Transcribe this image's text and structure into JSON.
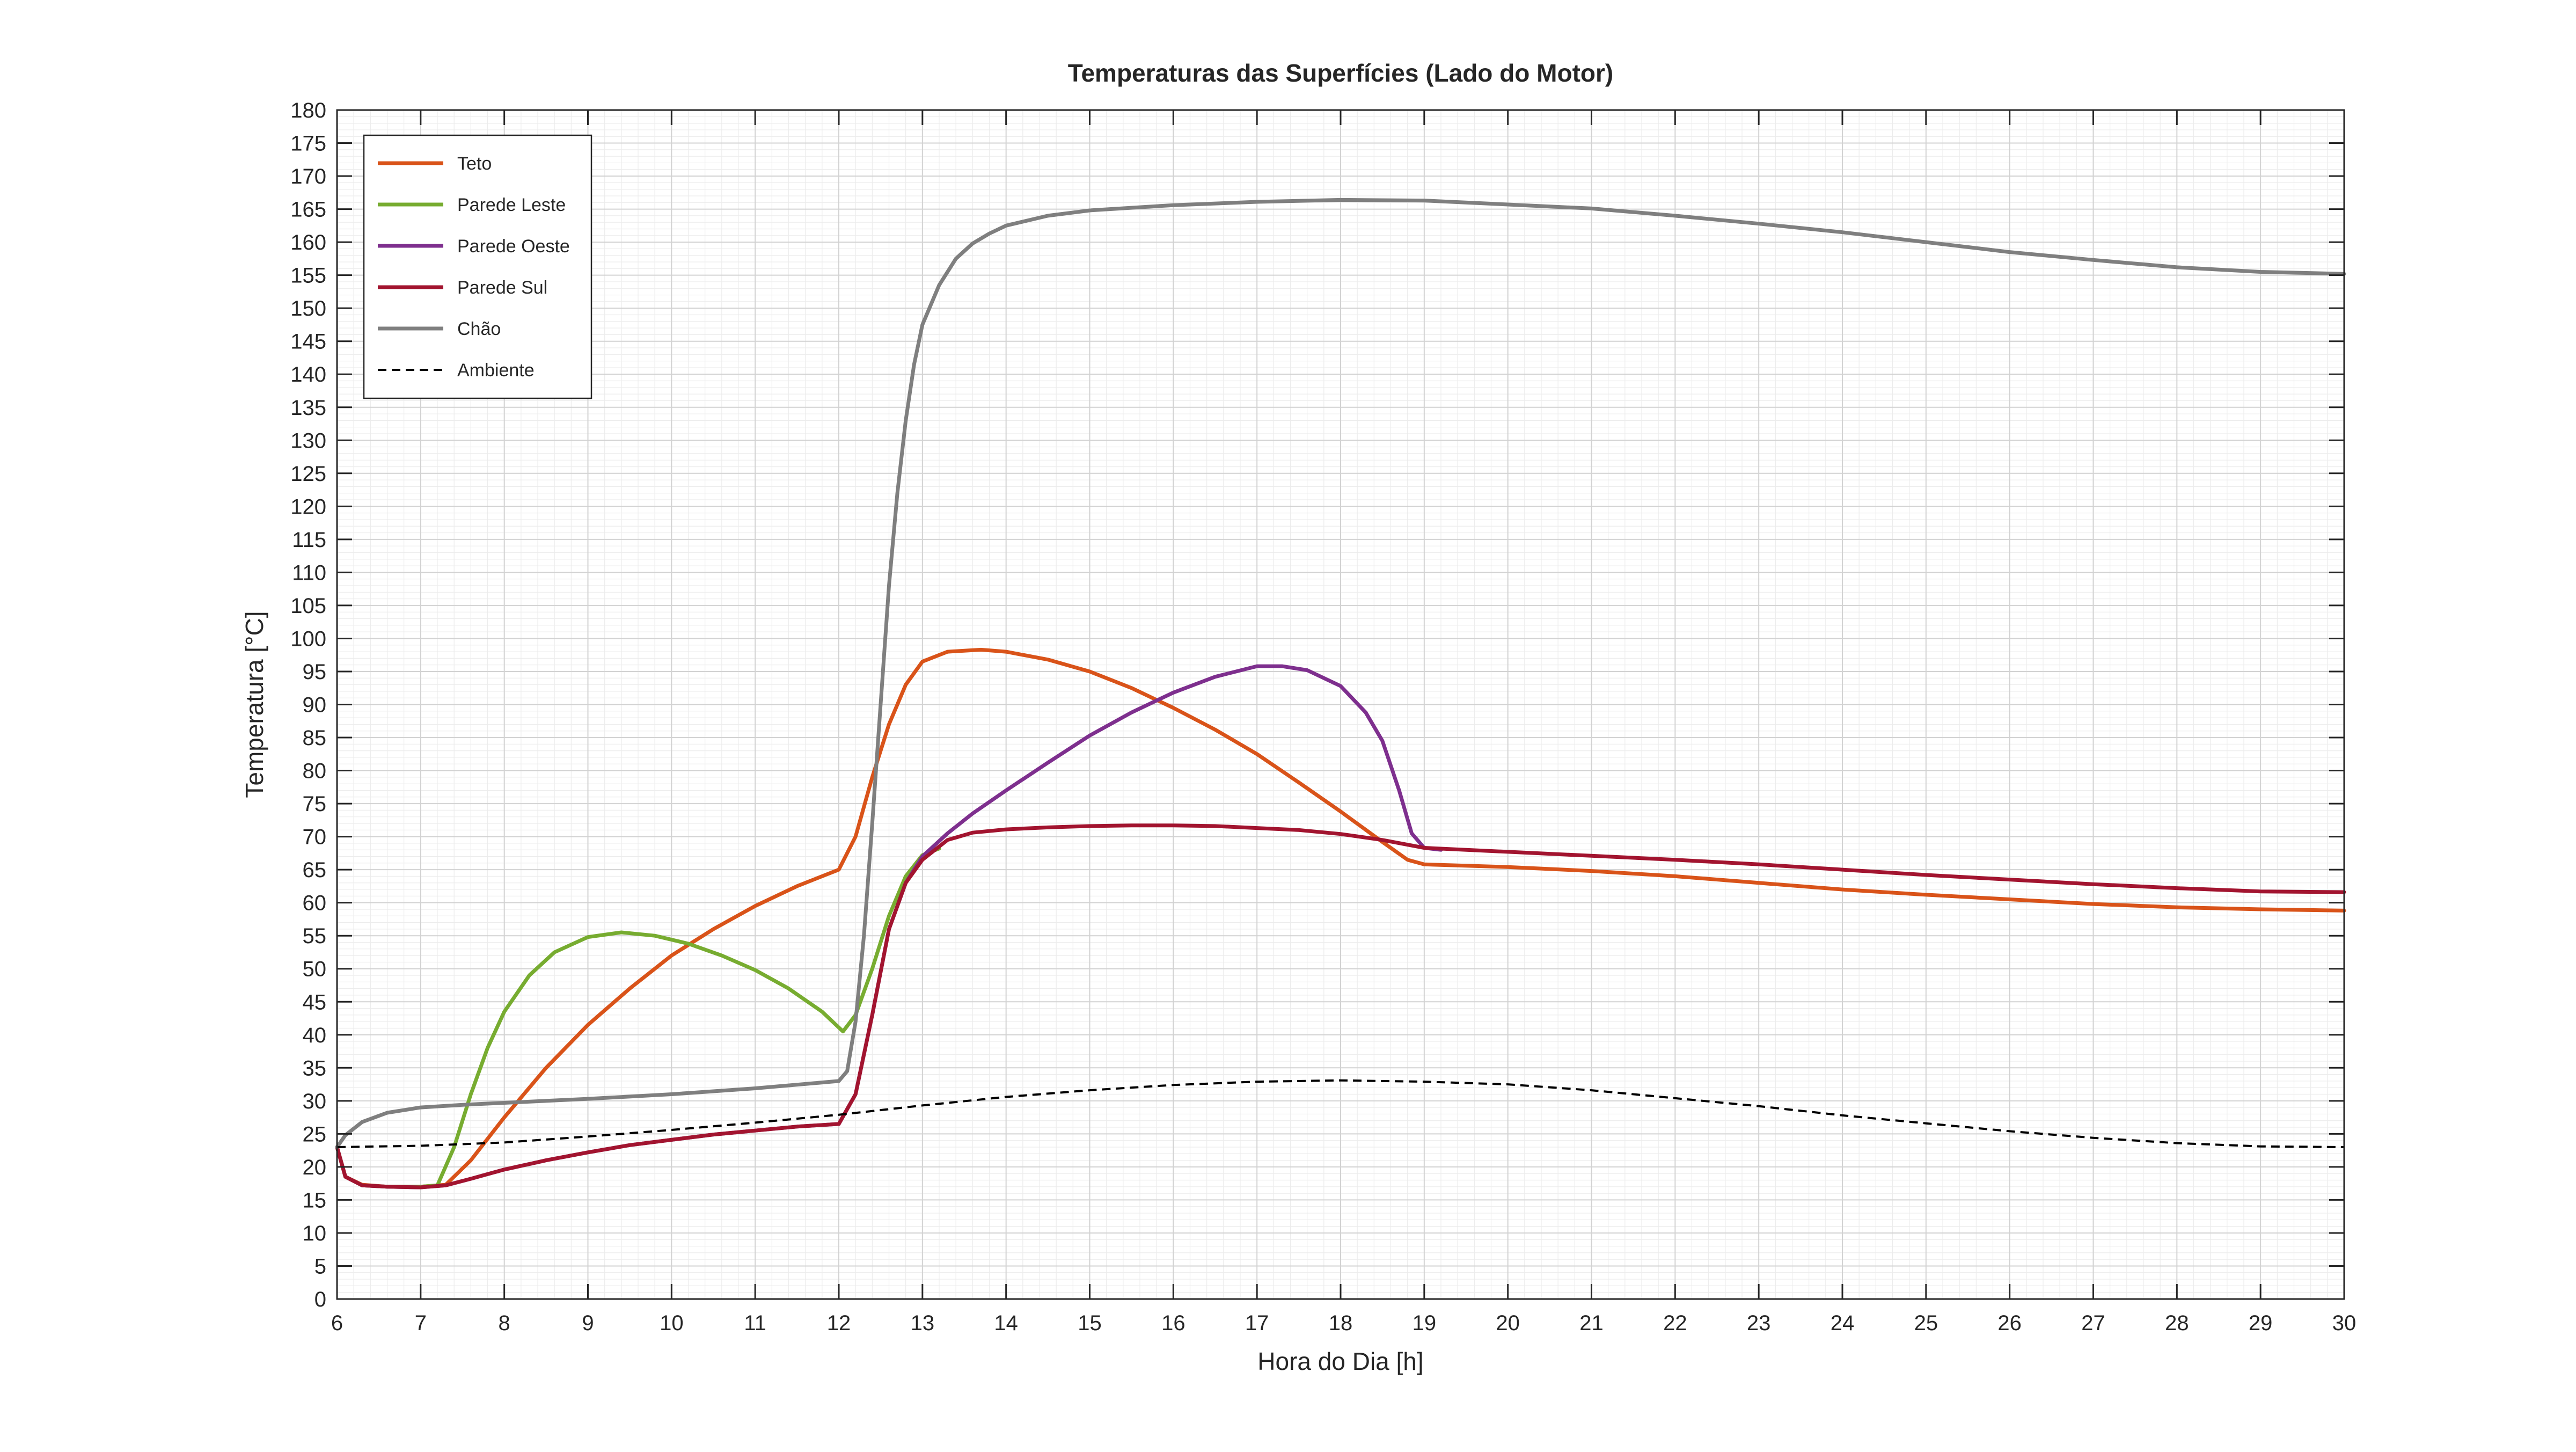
{
  "chart_data": {
    "type": "line",
    "title": "Temperaturas das Superfícies (Lado do Motor)",
    "xlabel": "Hora do Dia [h]",
    "ylabel": "Temperatura [°C]",
    "xlim": [
      6,
      30
    ],
    "ylim": [
      0,
      180
    ],
    "xticks": [
      6,
      7,
      8,
      9,
      10,
      11,
      12,
      13,
      14,
      15,
      16,
      17,
      18,
      19,
      20,
      21,
      22,
      23,
      24,
      25,
      26,
      27,
      28,
      29,
      30
    ],
    "yticks": [
      0,
      5,
      10,
      15,
      20,
      25,
      30,
      35,
      40,
      45,
      50,
      55,
      60,
      65,
      70,
      75,
      80,
      85,
      90,
      95,
      100,
      105,
      110,
      115,
      120,
      125,
      130,
      135,
      140,
      145,
      150,
      155,
      160,
      165,
      170,
      175,
      180
    ],
    "grid": true,
    "minor_grid": true,
    "legend_position": "top-left",
    "series": [
      {
        "name": "Teto",
        "color": "#D95319",
        "style": "solid",
        "points": [
          [
            6,
            23
          ],
          [
            6.1,
            18.5
          ],
          [
            6.3,
            17.3
          ],
          [
            6.6,
            17
          ],
          [
            7,
            17
          ],
          [
            7.3,
            17.3
          ],
          [
            7.6,
            21
          ],
          [
            8,
            27.5
          ],
          [
            8.5,
            35
          ],
          [
            9,
            41.5
          ],
          [
            9.5,
            47
          ],
          [
            10,
            52
          ],
          [
            10.5,
            56
          ],
          [
            11,
            59.5
          ],
          [
            11.5,
            62.5
          ],
          [
            12,
            65
          ],
          [
            12.2,
            70
          ],
          [
            12.4,
            79
          ],
          [
            12.6,
            87
          ],
          [
            12.8,
            93
          ],
          [
            13,
            96.5
          ],
          [
            13.3,
            98
          ],
          [
            13.7,
            98.3
          ],
          [
            14,
            98
          ],
          [
            14.5,
            96.8
          ],
          [
            15,
            95
          ],
          [
            15.5,
            92.5
          ],
          [
            16,
            89.5
          ],
          [
            16.5,
            86.2
          ],
          [
            17,
            82.5
          ],
          [
            17.5,
            78.2
          ],
          [
            18,
            73.8
          ],
          [
            18.5,
            69.2
          ],
          [
            18.8,
            66.5
          ],
          [
            19,
            65.8
          ],
          [
            20,
            65.4
          ],
          [
            21,
            64.8
          ],
          [
            22,
            64
          ],
          [
            23,
            63
          ],
          [
            24,
            62
          ],
          [
            25,
            61.2
          ],
          [
            26,
            60.5
          ],
          [
            27,
            59.8
          ],
          [
            28,
            59.3
          ],
          [
            29,
            59
          ],
          [
            30,
            58.8
          ]
        ]
      },
      {
        "name": "Parede Leste",
        "color": "#77AC30",
        "style": "solid",
        "points": [
          [
            6,
            23
          ],
          [
            6.1,
            18.5
          ],
          [
            6.3,
            17.2
          ],
          [
            6.6,
            17
          ],
          [
            7,
            17
          ],
          [
            7.2,
            17.2
          ],
          [
            7.4,
            23
          ],
          [
            7.6,
            31
          ],
          [
            7.8,
            38
          ],
          [
            8,
            43.5
          ],
          [
            8.3,
            49
          ],
          [
            8.6,
            52.5
          ],
          [
            9,
            54.8
          ],
          [
            9.4,
            55.5
          ],
          [
            9.8,
            55
          ],
          [
            10.2,
            53.8
          ],
          [
            10.6,
            52
          ],
          [
            11,
            49.8
          ],
          [
            11.4,
            47
          ],
          [
            11.8,
            43.5
          ],
          [
            12.05,
            40.5
          ],
          [
            12.2,
            43
          ],
          [
            12.4,
            50
          ],
          [
            12.6,
            58
          ],
          [
            12.8,
            64
          ],
          [
            13,
            67.2
          ],
          [
            13.2,
            68.2
          ]
        ]
      },
      {
        "name": "Parede Oeste",
        "color": "#7E2F8E",
        "style": "solid",
        "points": [
          [
            6,
            23
          ],
          [
            6.1,
            18.5
          ],
          [
            6.3,
            17.2
          ],
          [
            6.6,
            17
          ],
          [
            7,
            16.9
          ],
          [
            7.3,
            17.2
          ],
          [
            7.6,
            18.2
          ],
          [
            8,
            19.6
          ],
          [
            8.5,
            21
          ],
          [
            9,
            22.2
          ],
          [
            9.5,
            23.3
          ],
          [
            10,
            24.1
          ],
          [
            10.5,
            24.9
          ],
          [
            11,
            25.5
          ],
          [
            11.5,
            26.1
          ],
          [
            12,
            26.5
          ],
          [
            12.2,
            31
          ],
          [
            12.4,
            43
          ],
          [
            12.6,
            56
          ],
          [
            12.8,
            63
          ],
          [
            13,
            67
          ],
          [
            13.3,
            70.5
          ],
          [
            13.6,
            73.5
          ],
          [
            14,
            77
          ],
          [
            14.5,
            81.2
          ],
          [
            15,
            85.3
          ],
          [
            15.5,
            88.8
          ],
          [
            16,
            91.8
          ],
          [
            16.5,
            94.2
          ],
          [
            17,
            95.8
          ],
          [
            17.3,
            95.8
          ],
          [
            17.6,
            95.2
          ],
          [
            18,
            92.8
          ],
          [
            18.3,
            88.8
          ],
          [
            18.5,
            84.5
          ],
          [
            18.7,
            77
          ],
          [
            18.85,
            70.5
          ],
          [
            19,
            68.3
          ],
          [
            19.2,
            68
          ]
        ]
      },
      {
        "name": "Parede Sul",
        "color": "#A2142F",
        "style": "solid",
        "points": [
          [
            6,
            23
          ],
          [
            6.1,
            18.5
          ],
          [
            6.3,
            17.2
          ],
          [
            6.6,
            17
          ],
          [
            7,
            16.9
          ],
          [
            7.3,
            17.2
          ],
          [
            7.6,
            18.2
          ],
          [
            8,
            19.6
          ],
          [
            8.5,
            21
          ],
          [
            9,
            22.2
          ],
          [
            9.5,
            23.3
          ],
          [
            10,
            24.1
          ],
          [
            10.5,
            24.9
          ],
          [
            11,
            25.5
          ],
          [
            11.5,
            26.1
          ],
          [
            12,
            26.5
          ],
          [
            12.2,
            31
          ],
          [
            12.4,
            43
          ],
          [
            12.6,
            56
          ],
          [
            12.8,
            63
          ],
          [
            13,
            66.5
          ],
          [
            13.3,
            69.5
          ],
          [
            13.6,
            70.6
          ],
          [
            14,
            71.1
          ],
          [
            14.5,
            71.4
          ],
          [
            15,
            71.6
          ],
          [
            15.5,
            71.7
          ],
          [
            16,
            71.7
          ],
          [
            16.5,
            71.6
          ],
          [
            17,
            71.3
          ],
          [
            17.5,
            71
          ],
          [
            18,
            70.4
          ],
          [
            18.5,
            69.5
          ],
          [
            19,
            68.3
          ],
          [
            20,
            67.7
          ],
          [
            21,
            67.1
          ],
          [
            22,
            66.5
          ],
          [
            23,
            65.8
          ],
          [
            24,
            65
          ],
          [
            25,
            64.2
          ],
          [
            26,
            63.5
          ],
          [
            27,
            62.8
          ],
          [
            28,
            62.2
          ],
          [
            29,
            61.7
          ],
          [
            30,
            61.6
          ]
        ]
      },
      {
        "name": "Chão",
        "color": "#7F7F7F",
        "style": "solid",
        "points": [
          [
            6,
            23
          ],
          [
            6.1,
            24.8
          ],
          [
            6.3,
            26.8
          ],
          [
            6.6,
            28.2
          ],
          [
            7,
            29
          ],
          [
            7.5,
            29.4
          ],
          [
            8,
            29.7
          ],
          [
            9,
            30.3
          ],
          [
            10,
            31
          ],
          [
            11,
            31.9
          ],
          [
            12,
            33
          ],
          [
            12.1,
            34.5
          ],
          [
            12.2,
            42
          ],
          [
            12.3,
            55
          ],
          [
            12.4,
            72
          ],
          [
            12.5,
            90
          ],
          [
            12.6,
            108
          ],
          [
            12.7,
            122
          ],
          [
            12.8,
            133
          ],
          [
            12.9,
            141.5
          ],
          [
            13,
            147.5
          ],
          [
            13.2,
            153.5
          ],
          [
            13.4,
            157.5
          ],
          [
            13.6,
            159.8
          ],
          [
            13.8,
            161.3
          ],
          [
            14,
            162.5
          ],
          [
            14.5,
            164
          ],
          [
            15,
            164.8
          ],
          [
            16,
            165.6
          ],
          [
            17,
            166.1
          ],
          [
            18,
            166.4
          ],
          [
            19,
            166.3
          ],
          [
            20,
            165.7
          ],
          [
            21,
            165.1
          ],
          [
            22,
            164
          ],
          [
            23,
            162.8
          ],
          [
            24,
            161.5
          ],
          [
            25,
            160
          ],
          [
            26,
            158.5
          ],
          [
            27,
            157.3
          ],
          [
            28,
            156.2
          ],
          [
            29,
            155.5
          ],
          [
            30,
            155.2
          ]
        ]
      },
      {
        "name": "Ambiente",
        "color": "#000000",
        "style": "dashed",
        "points": [
          [
            6,
            23
          ],
          [
            7,
            23.2
          ],
          [
            8,
            23.7
          ],
          [
            9,
            24.6
          ],
          [
            10,
            25.6
          ],
          [
            11,
            26.7
          ],
          [
            12,
            27.9
          ],
          [
            13,
            29.3
          ],
          [
            14,
            30.6
          ],
          [
            15,
            31.6
          ],
          [
            16,
            32.4
          ],
          [
            17,
            32.9
          ],
          [
            18,
            33.1
          ],
          [
            19,
            32.9
          ],
          [
            20,
            32.5
          ],
          [
            21,
            31.6
          ],
          [
            22,
            30.4
          ],
          [
            23,
            29.2
          ],
          [
            24,
            27.8
          ],
          [
            25,
            26.6
          ],
          [
            26,
            25.4
          ],
          [
            27,
            24.4
          ],
          [
            28,
            23.6
          ],
          [
            29,
            23.1
          ],
          [
            30,
            23
          ]
        ]
      }
    ]
  }
}
